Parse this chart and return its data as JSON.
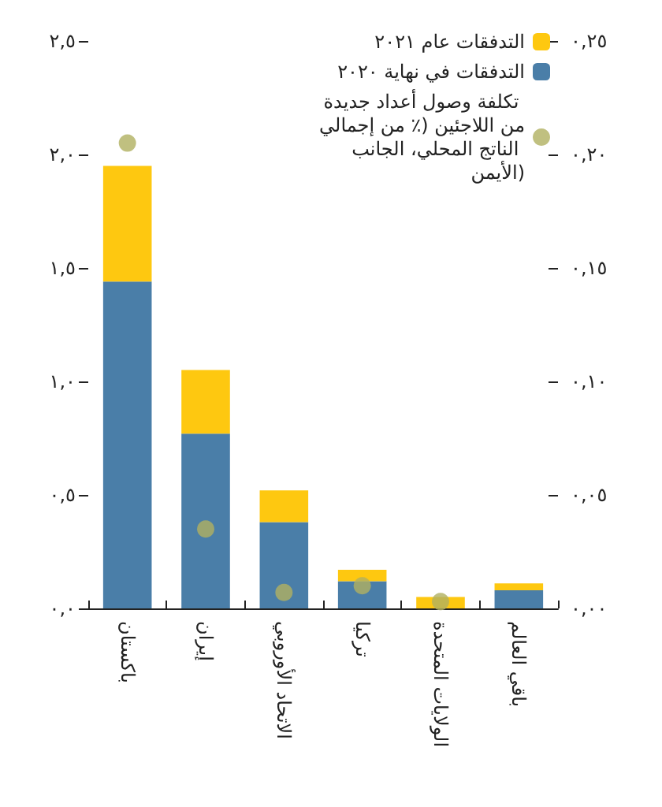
{
  "chart_data": {
    "type": "bar",
    "stacked": true,
    "categories": [
      "باكستان",
      "إيران",
      "الاتحاد الأوروبي",
      "تركيا",
      "الولايات المتحدة",
      "باقي العالم"
    ],
    "series": [
      {
        "name": "التدفقات في نهاية ٢٠٢٠",
        "color": "#4a7ea8",
        "values": [
          1.44,
          0.77,
          0.38,
          0.12,
          0,
          0.08
        ]
      },
      {
        "name": "التدفقات عام ٢٠٢١",
        "color": "#fec810",
        "values": [
          0.51,
          0.28,
          0.14,
          0.05,
          0.05,
          0.03
        ]
      },
      {
        "name": "تكلفة وصول أعداد جديدة من اللاجئين (٪ من إجمالي الناتج المحلي، الجانب الأيمن)",
        "type": "scatter",
        "axis": "y2",
        "color": "#b0b060",
        "values": [
          0.205,
          0.035,
          0.007,
          0.01,
          0.003,
          null
        ]
      }
    ],
    "ylim": [
      0,
      2.5
    ],
    "yticks": [
      {
        "value": 0,
        "label": "٠,٠"
      },
      {
        "value": 0.5,
        "label": "٠,٥"
      },
      {
        "value": 1,
        "label": "١,٠"
      },
      {
        "value": 1.5,
        "label": "١,٥"
      },
      {
        "value": 2,
        "label": "٢,٠"
      },
      {
        "value": 2.5,
        "label": "٢,٥"
      }
    ],
    "y2lim": [
      0,
      0.25
    ],
    "y2ticks": [
      {
        "value": 0,
        "label": "٠,٠٠"
      },
      {
        "value": 0.05,
        "label": "٠,٠٥"
      },
      {
        "value": 0.1,
        "label": "٠,١٠"
      },
      {
        "value": 0.15,
        "label": "٠,١٥"
      },
      {
        "value": 0.2,
        "label": "٠,٢٠"
      },
      {
        "value": 0.25,
        "label": "٠,٢٥"
      }
    ],
    "legend": "top right",
    "grid": false,
    "marker": "circle"
  }
}
